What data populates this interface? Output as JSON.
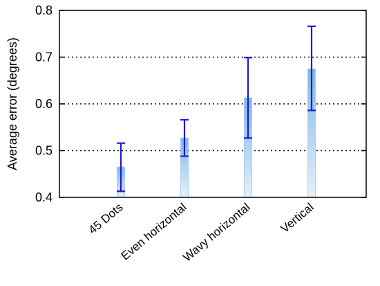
{
  "chart_data": {
    "type": "bar",
    "ylabel": "Average error (degrees)",
    "ylim": [
      0.4,
      0.8
    ],
    "y_ticks": [
      "0.4",
      "0.5",
      "0.6",
      "0.7",
      "0.8"
    ],
    "y_tick_values": [
      0.4,
      0.5,
      0.6,
      0.7,
      0.8
    ],
    "grid": "dotted horizontal at 0.5, 0.6, 0.7",
    "categories": [
      "45 Dots",
      "Even horizontal",
      "Wavy horizontal",
      "Vertical"
    ],
    "values": [
      0.465,
      0.527,
      0.613,
      0.675
    ],
    "error_low": [
      0.413,
      0.488,
      0.527,
      0.586
    ],
    "error_high": [
      0.516,
      0.566,
      0.699,
      0.766
    ],
    "colors": {
      "bar_light": "#e6f1fb",
      "bar_dark": "#7fb7e6",
      "bar_edge": "#9cc7ee",
      "error_bar": "#1b1bd6",
      "axis": "#000000",
      "grid": "#000000"
    }
  }
}
